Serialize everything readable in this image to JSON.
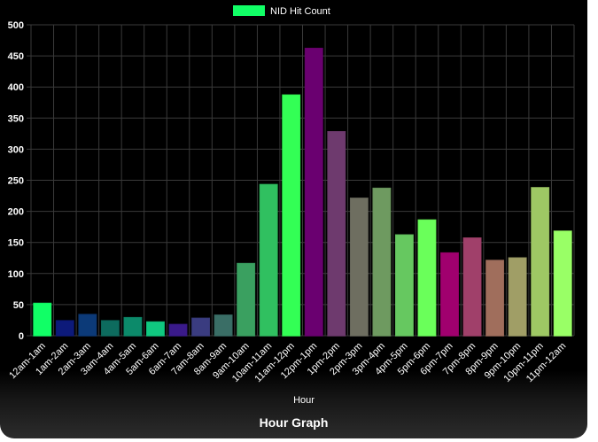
{
  "chart_data": {
    "type": "bar",
    "categories": [
      "12am-1am",
      "1am-2am",
      "2am-3am",
      "3am-4am",
      "4am-5am",
      "5am-6am",
      "6am-7am",
      "7am-8am",
      "8am-9am",
      "9am-10am",
      "10am-11am",
      "11am-12pm",
      "12pm-1pm",
      "1pm-2pm",
      "2pm-3pm",
      "3pm-4pm",
      "4pm-5pm",
      "5pm-6pm",
      "6pm-7pm",
      "7pm-8pm",
      "8pm-9pm",
      "9pm-10pm",
      "10pm-11pm",
      "11pm-12am"
    ],
    "series": [
      {
        "name": "NID Hit Count",
        "values": [
          52,
          24,
          34,
          24,
          29,
          22,
          18,
          28,
          33,
          116,
          243,
          387,
          462,
          328,
          221,
          237,
          162,
          186,
          133,
          157,
          121,
          125,
          238,
          168
        ],
        "colors": [
          "#11ff66",
          "#0d1a7a",
          "#0c3a78",
          "#0d6b5e",
          "#0c8a6a",
          "#10c880",
          "#3a1a8a",
          "#3a3c80",
          "#3a6e66",
          "#3aa060",
          "#30c060",
          "#33ff55",
          "#6a0070",
          "#6e3a6e",
          "#6e6e60",
          "#6e9a60",
          "#66c860",
          "#6aff5a",
          "#a0006e",
          "#a0406a",
          "#a06e5c",
          "#a09e66",
          "#9ec864",
          "#99ff66"
        ]
      }
    ],
    "title": "",
    "xlabel": "Hour",
    "ylabel": "",
    "ylim": [
      0,
      500
    ],
    "yticks": [
      0,
      50,
      100,
      150,
      200,
      250,
      300,
      350,
      400,
      450,
      500
    ],
    "grid": true,
    "legend": "top-center"
  },
  "footer": {
    "title": "Hour Graph"
  },
  "colors": {
    "background": "#000000",
    "grid": "#3a3a3a",
    "text": "#ffffff",
    "legend_swatch": "#11ff66"
  }
}
